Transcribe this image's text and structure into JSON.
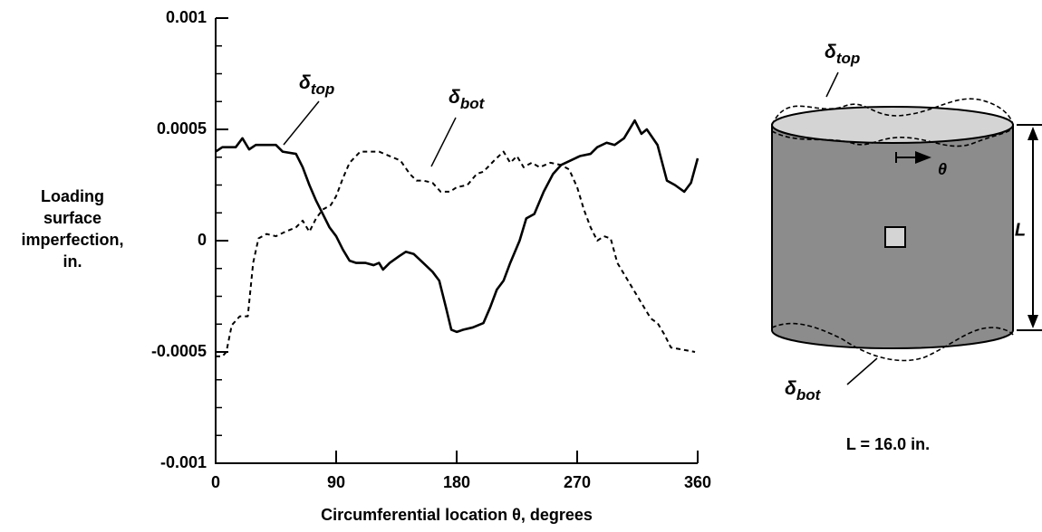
{
  "chart_data": {
    "type": "line",
    "x_label": "Circumferential location θ, degrees",
    "y_label": [
      "Loading",
      "surface",
      "imperfection,",
      "in."
    ],
    "xlim": [
      0,
      360
    ],
    "xticks": [
      0,
      90,
      180,
      270,
      360
    ],
    "ylim": [
      -0.001,
      0.001
    ],
    "yticks": [
      0.001,
      0.0005,
      0,
      -0.0005,
      -0.001
    ],
    "series": [
      {
        "name": "δtop",
        "color": "#000000",
        "style": "solid",
        "x": [
          0,
          5,
          15,
          20,
          25,
          30,
          45,
          50,
          60,
          65,
          70,
          75,
          80,
          85,
          90,
          95,
          100,
          105,
          112,
          118,
          122,
          125,
          130,
          137,
          142,
          148,
          155,
          162,
          167,
          172,
          176,
          180,
          185,
          192,
          200,
          205,
          210,
          215,
          220,
          227,
          232,
          238,
          245,
          252,
          258,
          265,
          272,
          280,
          285,
          292,
          298,
          305,
          313,
          318,
          322,
          330,
          337,
          343,
          350,
          355,
          360
        ],
        "values": [
          0.0004,
          0.00042,
          0.00042,
          0.00046,
          0.00041,
          0.00043,
          0.00043,
          0.0004,
          0.00039,
          0.00033,
          0.00025,
          0.00018,
          0.00012,
          6e-05,
          2e-05,
          -4e-05,
          -9e-05,
          -0.0001,
          -0.0001,
          -0.00011,
          -0.0001,
          -0.00013,
          -0.0001,
          -7e-05,
          -5e-05,
          -6e-05,
          -0.0001,
          -0.00014,
          -0.00018,
          -0.0003,
          -0.0004,
          -0.00041,
          -0.0004,
          -0.00039,
          -0.00037,
          -0.0003,
          -0.00022,
          -0.00018,
          -0.0001,
          0.0,
          0.0001,
          0.00012,
          0.00022,
          0.0003,
          0.00034,
          0.00036,
          0.00038,
          0.00039,
          0.00042,
          0.00044,
          0.00043,
          0.00046,
          0.00054,
          0.00048,
          0.0005,
          0.00043,
          0.00027,
          0.00025,
          0.00022,
          0.00026,
          0.00037
        ]
      },
      {
        "name": "δbot",
        "color": "#000000",
        "style": "dashed",
        "x": [
          0,
          5,
          8,
          12,
          18,
          24,
          28,
          32,
          38,
          45,
          52,
          60,
          65,
          70,
          75,
          80,
          86,
          90,
          95,
          100,
          108,
          115,
          122,
          130,
          138,
          145,
          150,
          155,
          162,
          168,
          175,
          180,
          188,
          195,
          200,
          208,
          215,
          220,
          225,
          230,
          236,
          242,
          250,
          258,
          264,
          270,
          275,
          280,
          285,
          290,
          295,
          300,
          305,
          310,
          318,
          325,
          330,
          335,
          340,
          358
        ],
        "values": [
          -0.00052,
          -0.00052,
          -0.0005,
          -0.00038,
          -0.00034,
          -0.00034,
          -0.0001,
          1e-05,
          3e-05,
          2e-05,
          4e-05,
          6e-05,
          9e-05,
          4e-05,
          0.0001,
          0.00014,
          0.00016,
          0.0002,
          0.00028,
          0.00035,
          0.0004,
          0.0004,
          0.0004,
          0.00038,
          0.00036,
          0.0003,
          0.00027,
          0.00027,
          0.00026,
          0.00022,
          0.00022,
          0.00024,
          0.00025,
          0.0003,
          0.00031,
          0.00036,
          0.0004,
          0.00035,
          0.00038,
          0.00033,
          0.00035,
          0.00033,
          0.00035,
          0.00034,
          0.00032,
          0.00024,
          0.00014,
          6e-05,
          0.0,
          2e-05,
          1e-05,
          -0.0001,
          -0.00015,
          -0.0002,
          -0.00028,
          -0.00035,
          -0.00037,
          -0.00042,
          -0.00048,
          -0.0005
        ]
      }
    ]
  },
  "diagram": {
    "theta_label": "θ",
    "length_label": "L",
    "caption": "L = 16.0 in."
  }
}
